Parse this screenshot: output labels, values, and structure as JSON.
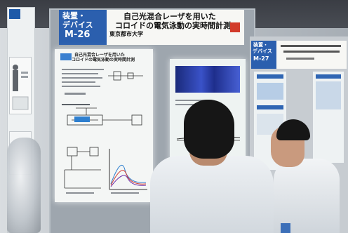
{
  "booth_header": {
    "category_line1": "装置・",
    "category_line2": "デバイス",
    "code": "M-26",
    "title_line1": "自己光混合レーザを用いた",
    "title_line2": "コロイドの電気泳動の実時間計測",
    "institution": "東京都市大学"
  },
  "poster": {
    "title_line1": "自己光混合レーザを用いた",
    "title_line2": "コロイドの電気泳動の実時間計測"
  },
  "neighbor_header": {
    "category_line1": "装置・",
    "category_line2": "デバイス",
    "code": "M-27"
  },
  "colors": {
    "header_blue": "#2b5fae",
    "poster_white": "#f4f6f5",
    "shirt_white": "#e8ecef",
    "hair_black": "#161616"
  }
}
